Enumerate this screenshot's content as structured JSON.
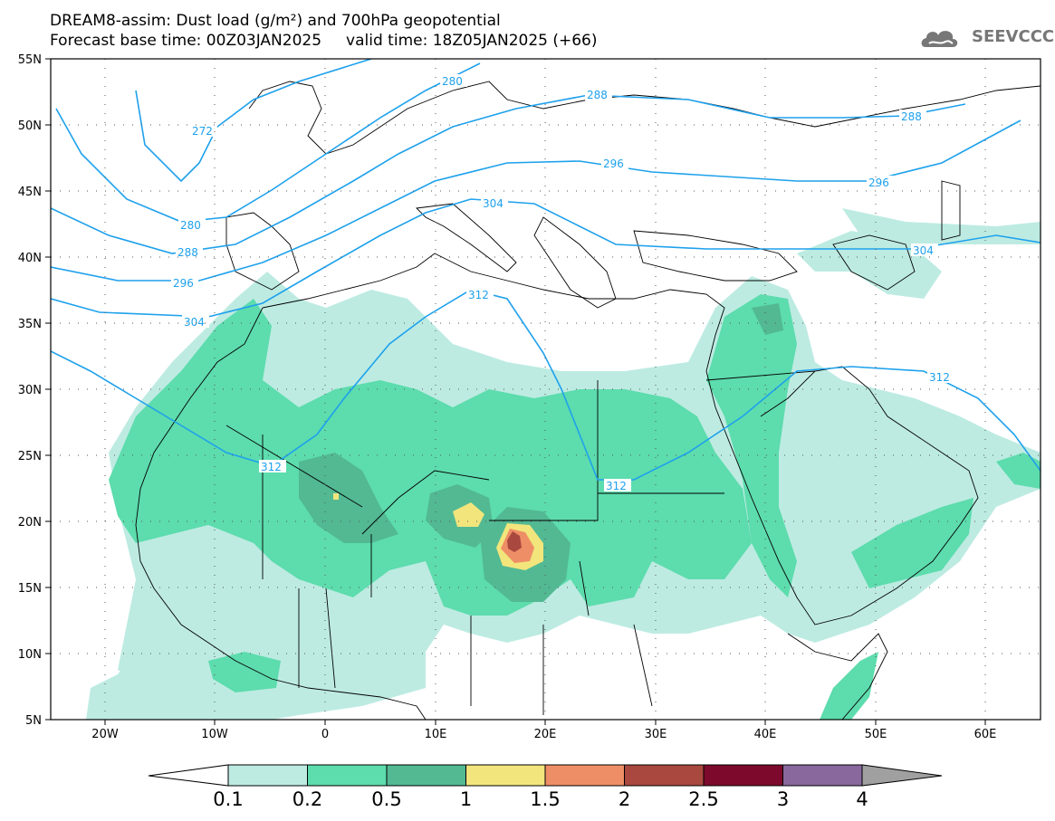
{
  "header": {
    "title_line1": "DREAM8-assim: Dust load (g/m²) and 700hPa geopotential",
    "title_line2": "Forecast base time: 00Z03JAN2025     valid time: 18Z05JAN2025 (+66)",
    "logo_text": "SEEVCCC"
  },
  "map": {
    "lat_labels": [
      "55N",
      "50N",
      "45N",
      "40N",
      "35N",
      "30N",
      "25N",
      "20N",
      "15N",
      "10N",
      "5N"
    ],
    "lon_labels": [
      "20W",
      "10W",
      "0",
      "10E",
      "20E",
      "30E",
      "40E",
      "50E",
      "60E"
    ],
    "contours": [
      {
        "label": "272",
        "value": 272
      },
      {
        "label": "280",
        "value": 280
      },
      {
        "label": "288",
        "value": 288
      },
      {
        "label": "296",
        "value": 296
      },
      {
        "label": "304",
        "value": 304
      },
      {
        "label": "312",
        "value": 312
      }
    ],
    "contour_color": "#1ea1ec"
  },
  "colorbar": {
    "levels": [
      {
        "label": "0.1",
        "color": "#bdebe2"
      },
      {
        "label": "0.2",
        "color": "#5ddcad"
      },
      {
        "label": "0.5",
        "color": "#52b993"
      },
      {
        "label": "1",
        "color": "#f2e57c"
      },
      {
        "label": "1.5",
        "color": "#ee8e66"
      },
      {
        "label": "2",
        "color": "#a9483e"
      },
      {
        "label": "2.5",
        "color": "#7d0a2c"
      },
      {
        "label": "3",
        "color": "#89689e"
      },
      {
        "label": "4",
        "color": "#a0a0a0"
      }
    ]
  }
}
